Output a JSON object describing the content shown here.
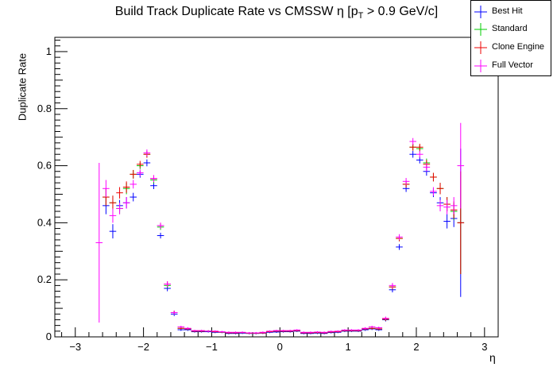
{
  "chart_data": {
    "type": "scatter",
    "title_main": "Build Track Duplicate Rate vs CMSSW η [p",
    "title_sub": "T",
    "title_tail": " > 0.9 GeV/c]",
    "xlabel": "η",
    "ylabel": "Duplicate Rate",
    "xlim": [
      -3.3,
      3.2
    ],
    "ylim": [
      0,
      1.05
    ],
    "xticks": [
      -3,
      -2,
      -1,
      0,
      1,
      2,
      3
    ],
    "xtick_labels": [
      "−3",
      "−2",
      "−1",
      "0",
      "1",
      "2",
      "3"
    ],
    "yticks": [
      0,
      0.2,
      0.4,
      0.6,
      0.8,
      1
    ],
    "ytick_labels": [
      "0",
      "0.2",
      "0.4",
      "0.6",
      "0.8",
      "1"
    ],
    "grid": false,
    "legend_position": "top-right",
    "bin_half_width": 0.05,
    "series": [
      {
        "name": "Best Hit",
        "color": "#0000ff",
        "points": [
          [
            -2.55,
            0.46,
            0.03
          ],
          [
            -2.45,
            0.37,
            0.025
          ],
          [
            -2.35,
            0.46,
            0.02
          ],
          [
            -2.25,
            0.47,
            0.02
          ],
          [
            -2.15,
            0.49,
            0.015
          ],
          [
            -2.05,
            0.57,
            0.012
          ],
          [
            -1.95,
            0.61,
            0.012
          ],
          [
            -1.85,
            0.53,
            0.012
          ],
          [
            -1.75,
            0.355,
            0.01
          ],
          [
            -1.65,
            0.17,
            0.01
          ],
          [
            -1.55,
            0.08,
            0.007
          ],
          [
            -1.45,
            0.025,
            0.004
          ],
          [
            -1.35,
            0.025,
            0.004
          ],
          [
            -1.25,
            0.018,
            0.003
          ],
          [
            -1.15,
            0.018,
            0.003
          ],
          [
            -1.05,
            0.018,
            0.003
          ],
          [
            -0.95,
            0.016,
            0.003
          ],
          [
            -0.85,
            0.016,
            0.003
          ],
          [
            -0.75,
            0.012,
            0.003
          ],
          [
            -0.65,
            0.012,
            0.003
          ],
          [
            -0.55,
            0.013,
            0.003
          ],
          [
            -0.45,
            0.012,
            0.003
          ],
          [
            -0.35,
            0.012,
            0.003
          ],
          [
            -0.25,
            0.013,
            0.003
          ],
          [
            -0.15,
            0.016,
            0.003
          ],
          [
            -0.05,
            0.017,
            0.003
          ],
          [
            0.05,
            0.018,
            0.003
          ],
          [
            0.15,
            0.018,
            0.003
          ],
          [
            0.25,
            0.02,
            0.003
          ],
          [
            0.35,
            0.012,
            0.003
          ],
          [
            0.45,
            0.012,
            0.003
          ],
          [
            0.55,
            0.013,
            0.003
          ],
          [
            0.65,
            0.012,
            0.003
          ],
          [
            0.75,
            0.015,
            0.003
          ],
          [
            0.85,
            0.016,
            0.003
          ],
          [
            0.95,
            0.02,
            0.003
          ],
          [
            1.05,
            0.02,
            0.003
          ],
          [
            1.15,
            0.02,
            0.003
          ],
          [
            1.25,
            0.025,
            0.004
          ],
          [
            1.35,
            0.028,
            0.004
          ],
          [
            1.45,
            0.025,
            0.004
          ],
          [
            1.55,
            0.06,
            0.006
          ],
          [
            1.65,
            0.165,
            0.009
          ],
          [
            1.75,
            0.315,
            0.01
          ],
          [
            1.85,
            0.52,
            0.012
          ],
          [
            1.95,
            0.64,
            0.012
          ],
          [
            2.05,
            0.62,
            0.012
          ],
          [
            2.15,
            0.58,
            0.015
          ],
          [
            2.25,
            0.505,
            0.015
          ],
          [
            2.35,
            0.47,
            0.02
          ],
          [
            2.45,
            0.405,
            0.025
          ],
          [
            2.55,
            0.415,
            0.03
          ],
          [
            2.65,
            0.4,
            0.26
          ]
        ]
      },
      {
        "name": "Standard",
        "color": "#00cc00",
        "points": [
          [
            -2.55,
            0.49,
            0.03
          ],
          [
            -2.45,
            0.47,
            0.025
          ],
          [
            -2.35,
            0.45,
            0.02
          ],
          [
            -2.25,
            0.52,
            0.02
          ],
          [
            -2.15,
            0.57,
            0.015
          ],
          [
            -2.05,
            0.6,
            0.012
          ],
          [
            -1.95,
            0.64,
            0.012
          ],
          [
            -1.85,
            0.55,
            0.012
          ],
          [
            -1.75,
            0.385,
            0.01
          ],
          [
            -1.65,
            0.18,
            0.01
          ],
          [
            -1.55,
            0.085,
            0.007
          ],
          [
            -1.45,
            0.03,
            0.004
          ],
          [
            -1.35,
            0.028,
            0.004
          ],
          [
            -1.25,
            0.02,
            0.003
          ],
          [
            -1.15,
            0.02,
            0.003
          ],
          [
            -1.05,
            0.02,
            0.003
          ],
          [
            -0.95,
            0.018,
            0.003
          ],
          [
            -0.85,
            0.017,
            0.003
          ],
          [
            -0.75,
            0.014,
            0.003
          ],
          [
            -0.65,
            0.014,
            0.003
          ],
          [
            -0.55,
            0.015,
            0.003
          ],
          [
            -0.45,
            0.013,
            0.003
          ],
          [
            -0.35,
            0.013,
            0.003
          ],
          [
            -0.25,
            0.014,
            0.003
          ],
          [
            -0.15,
            0.018,
            0.003
          ],
          [
            -0.05,
            0.02,
            0.003
          ],
          [
            0.05,
            0.02,
            0.003
          ],
          [
            0.15,
            0.02,
            0.003
          ],
          [
            0.25,
            0.022,
            0.003
          ],
          [
            0.35,
            0.014,
            0.003
          ],
          [
            0.45,
            0.014,
            0.003
          ],
          [
            0.55,
            0.015,
            0.003
          ],
          [
            0.65,
            0.014,
            0.003
          ],
          [
            0.75,
            0.017,
            0.003
          ],
          [
            0.85,
            0.018,
            0.003
          ],
          [
            0.95,
            0.022,
            0.003
          ],
          [
            1.05,
            0.022,
            0.003
          ],
          [
            1.15,
            0.022,
            0.003
          ],
          [
            1.25,
            0.028,
            0.004
          ],
          [
            1.35,
            0.03,
            0.004
          ],
          [
            1.45,
            0.028,
            0.004
          ],
          [
            1.55,
            0.062,
            0.006
          ],
          [
            1.65,
            0.175,
            0.009
          ],
          [
            1.75,
            0.345,
            0.01
          ],
          [
            1.85,
            0.535,
            0.012
          ],
          [
            1.95,
            0.665,
            0.012
          ],
          [
            2.05,
            0.66,
            0.012
          ],
          [
            2.15,
            0.61,
            0.015
          ],
          [
            2.25,
            0.56,
            0.015
          ],
          [
            2.35,
            0.52,
            0.02
          ],
          [
            2.45,
            0.465,
            0.025
          ],
          [
            2.55,
            0.44,
            0.03
          ],
          [
            2.65,
            0.4,
            0.18
          ]
        ]
      },
      {
        "name": "Clone Engine",
        "color": "#ee0000",
        "points": [
          [
            -2.55,
            0.49,
            0.03
          ],
          [
            -2.45,
            0.47,
            0.025
          ],
          [
            -2.35,
            0.505,
            0.02
          ],
          [
            -2.25,
            0.525,
            0.02
          ],
          [
            -2.15,
            0.57,
            0.015
          ],
          [
            -2.05,
            0.605,
            0.012
          ],
          [
            -1.95,
            0.64,
            0.012
          ],
          [
            -1.85,
            0.555,
            0.012
          ],
          [
            -1.75,
            0.39,
            0.01
          ],
          [
            -1.65,
            0.185,
            0.01
          ],
          [
            -1.55,
            0.085,
            0.007
          ],
          [
            -1.45,
            0.03,
            0.004
          ],
          [
            -1.35,
            0.028,
            0.004
          ],
          [
            -1.25,
            0.02,
            0.003
          ],
          [
            -1.15,
            0.02,
            0.003
          ],
          [
            -1.05,
            0.02,
            0.003
          ],
          [
            -0.95,
            0.018,
            0.003
          ],
          [
            -0.85,
            0.017,
            0.003
          ],
          [
            -0.75,
            0.014,
            0.003
          ],
          [
            -0.65,
            0.014,
            0.003
          ],
          [
            -0.55,
            0.015,
            0.003
          ],
          [
            -0.45,
            0.013,
            0.003
          ],
          [
            -0.35,
            0.013,
            0.003
          ],
          [
            -0.25,
            0.014,
            0.003
          ],
          [
            -0.15,
            0.018,
            0.003
          ],
          [
            -0.05,
            0.02,
            0.003
          ],
          [
            0.05,
            0.02,
            0.003
          ],
          [
            0.15,
            0.02,
            0.003
          ],
          [
            0.25,
            0.022,
            0.003
          ],
          [
            0.35,
            0.014,
            0.003
          ],
          [
            0.45,
            0.014,
            0.003
          ],
          [
            0.55,
            0.015,
            0.003
          ],
          [
            0.65,
            0.014,
            0.003
          ],
          [
            0.75,
            0.017,
            0.003
          ],
          [
            0.85,
            0.018,
            0.003
          ],
          [
            0.95,
            0.022,
            0.003
          ],
          [
            1.05,
            0.022,
            0.003
          ],
          [
            1.15,
            0.022,
            0.003
          ],
          [
            1.25,
            0.028,
            0.004
          ],
          [
            1.35,
            0.03,
            0.004
          ],
          [
            1.45,
            0.028,
            0.004
          ],
          [
            1.55,
            0.062,
            0.006
          ],
          [
            1.65,
            0.175,
            0.009
          ],
          [
            1.75,
            0.345,
            0.01
          ],
          [
            1.85,
            0.535,
            0.012
          ],
          [
            1.95,
            0.665,
            0.012
          ],
          [
            2.05,
            0.665,
            0.012
          ],
          [
            2.15,
            0.605,
            0.015
          ],
          [
            2.25,
            0.56,
            0.015
          ],
          [
            2.35,
            0.52,
            0.02
          ],
          [
            2.45,
            0.465,
            0.025
          ],
          [
            2.55,
            0.445,
            0.03
          ],
          [
            2.65,
            0.4,
            0.18
          ]
        ]
      },
      {
        "name": "Full Vector",
        "color": "#ff00ff",
        "points": [
          [
            -2.65,
            0.33,
            0.28
          ],
          [
            -2.55,
            0.52,
            0.03
          ],
          [
            -2.45,
            0.425,
            0.025
          ],
          [
            -2.35,
            0.45,
            0.02
          ],
          [
            -2.25,
            0.47,
            0.02
          ],
          [
            -2.15,
            0.535,
            0.015
          ],
          [
            -2.05,
            0.575,
            0.012
          ],
          [
            -1.95,
            0.645,
            0.012
          ],
          [
            -1.85,
            0.555,
            0.012
          ],
          [
            -1.75,
            0.39,
            0.01
          ],
          [
            -1.65,
            0.185,
            0.01
          ],
          [
            -1.55,
            0.085,
            0.007
          ],
          [
            -1.45,
            0.035,
            0.004
          ],
          [
            -1.35,
            0.03,
            0.004
          ],
          [
            -1.25,
            0.022,
            0.003
          ],
          [
            -1.15,
            0.022,
            0.003
          ],
          [
            -1.05,
            0.02,
            0.003
          ],
          [
            -0.95,
            0.02,
            0.003
          ],
          [
            -0.85,
            0.018,
            0.003
          ],
          [
            -0.75,
            0.016,
            0.003
          ],
          [
            -0.65,
            0.016,
            0.003
          ],
          [
            -0.55,
            0.016,
            0.003
          ],
          [
            -0.45,
            0.014,
            0.003
          ],
          [
            -0.35,
            0.014,
            0.003
          ],
          [
            -0.25,
            0.016,
            0.003
          ],
          [
            -0.15,
            0.02,
            0.003
          ],
          [
            -0.05,
            0.022,
            0.003
          ],
          [
            0.05,
            0.022,
            0.003
          ],
          [
            0.15,
            0.022,
            0.003
          ],
          [
            0.25,
            0.024,
            0.003
          ],
          [
            0.35,
            0.016,
            0.003
          ],
          [
            0.45,
            0.016,
            0.003
          ],
          [
            0.55,
            0.017,
            0.003
          ],
          [
            0.65,
            0.016,
            0.003
          ],
          [
            0.75,
            0.019,
            0.003
          ],
          [
            0.85,
            0.02,
            0.003
          ],
          [
            0.95,
            0.024,
            0.003
          ],
          [
            1.05,
            0.024,
            0.003
          ],
          [
            1.15,
            0.024,
            0.003
          ],
          [
            1.25,
            0.03,
            0.004
          ],
          [
            1.35,
            0.035,
            0.004
          ],
          [
            1.45,
            0.032,
            0.004
          ],
          [
            1.55,
            0.065,
            0.006
          ],
          [
            1.65,
            0.18,
            0.009
          ],
          [
            1.75,
            0.35,
            0.01
          ],
          [
            1.85,
            0.545,
            0.012
          ],
          [
            1.95,
            0.685,
            0.012
          ],
          [
            2.05,
            0.64,
            0.012
          ],
          [
            2.15,
            0.595,
            0.015
          ],
          [
            2.25,
            0.51,
            0.015
          ],
          [
            2.35,
            0.46,
            0.02
          ],
          [
            2.45,
            0.455,
            0.025
          ],
          [
            2.55,
            0.46,
            0.03
          ],
          [
            2.65,
            0.6,
            0.15
          ]
        ]
      }
    ]
  }
}
